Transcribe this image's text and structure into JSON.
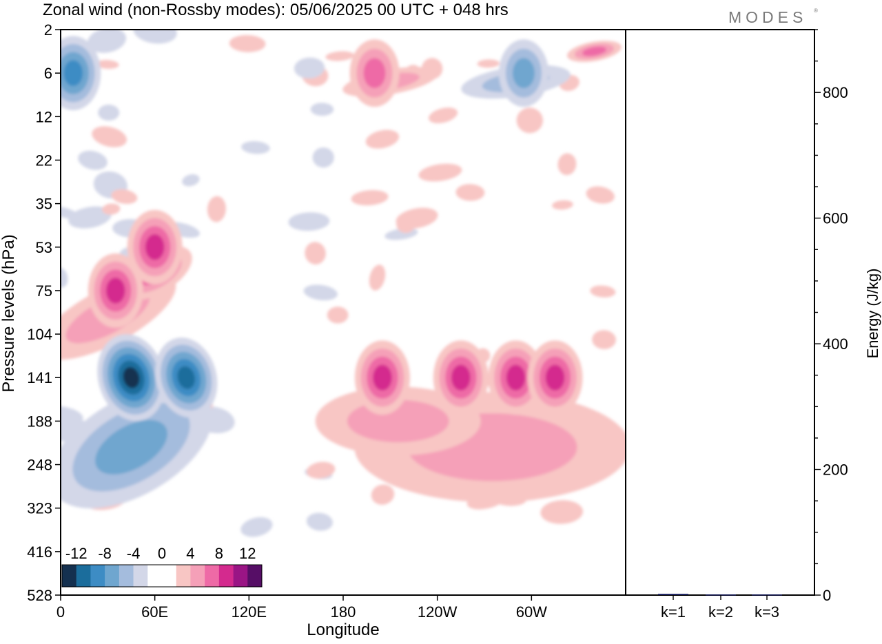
{
  "title": "Zonal wind (non-Rossby modes):  05/06/2025  00 UTC  + 048 hrs",
  "logo_text": "MODES",
  "chart_data": [
    {
      "type": "heatmap",
      "xlabel": "Longitude",
      "ylabel": "Pressure levels (hPa)",
      "x_ticks": [
        "0",
        "60E",
        "120E",
        "180",
        "120W",
        "60W"
      ],
      "x_tick_values": [
        0,
        60,
        120,
        180,
        240,
        300
      ],
      "x_range": [
        0,
        360
      ],
      "y_ticks": [
        "2",
        "6",
        "12",
        "22",
        "35",
        "53",
        "75",
        "104",
        "141",
        "188",
        "248",
        "323",
        "416",
        "528"
      ],
      "colorbar": {
        "labels": [
          "-12",
          "-8",
          "-4",
          "0",
          "4",
          "8",
          "12"
        ],
        "colors": [
          "#14304f",
          "#1b6d9c",
          "#3d8cc4",
          "#6fa6cf",
          "#a4bcdd",
          "#d3d7e8",
          "#ffffff",
          "#ffffff",
          "#f8c6c4",
          "#f5a0b8",
          "#ee6aa6",
          "#d42a8e",
          "#9a1585",
          "#560e66"
        ]
      },
      "features": [
        {
          "kind": "negative",
          "lon": 8,
          "level": "6",
          "value": -8
        },
        {
          "kind": "positive",
          "lon": 35,
          "level": "75",
          "value": 8
        },
        {
          "kind": "positive",
          "lon": 60,
          "level": "53",
          "value": 8
        },
        {
          "kind": "negative",
          "lon": 45,
          "level": "141",
          "value": -12
        },
        {
          "kind": "negative",
          "lon": 80,
          "level": "141",
          "value": -10
        },
        {
          "kind": "positive",
          "lon": 205,
          "level": "141",
          "value": 8
        },
        {
          "kind": "positive",
          "lon": 255,
          "level": "141",
          "value": 8
        },
        {
          "kind": "positive",
          "lon": 290,
          "level": "141",
          "value": 8
        },
        {
          "kind": "positive",
          "lon": 315,
          "level": "141",
          "value": 8
        },
        {
          "kind": "positive",
          "lon": 200,
          "level": "6",
          "value": 6
        },
        {
          "kind": "negative",
          "lon": 295,
          "level": "6",
          "value": -6
        }
      ]
    },
    {
      "type": "bar",
      "ylabel": "Energy (J/kg)",
      "categories": [
        "k=1",
        "k=2",
        "k=3"
      ],
      "values": [
        2,
        1,
        1
      ],
      "ylim": [
        0,
        900
      ],
      "y_ticks": [
        "0",
        "200",
        "400",
        "600",
        "800"
      ],
      "y_tick_values": [
        0,
        200,
        400,
        600,
        800
      ],
      "bar_color": "#141a5c"
    }
  ]
}
